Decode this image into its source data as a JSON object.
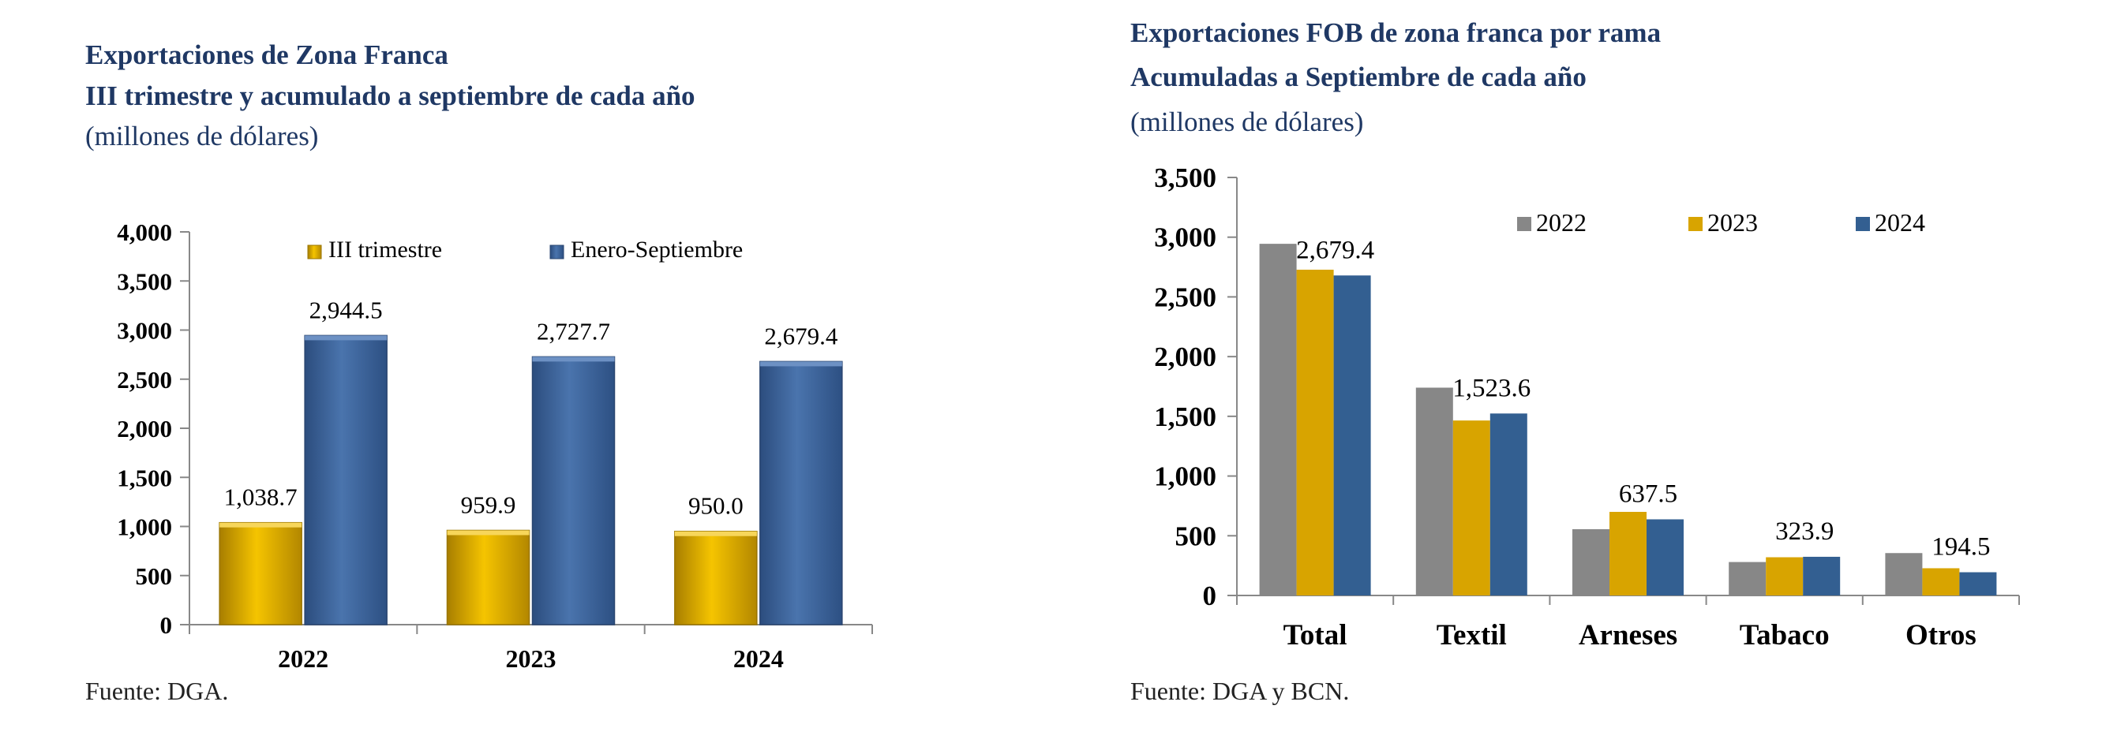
{
  "chart_data": [
    {
      "type": "bar",
      "title_line1": "Exportaciones de Zona Franca",
      "title_line2": "III trimestre y acumulado a septiembre de cada año",
      "subtitle": "(millones de dólares)",
      "categories": [
        "2022",
        "2023",
        "2024"
      ],
      "series": [
        {
          "name": "III trimestre",
          "values": [
            1038.7,
            959.9,
            950.0
          ],
          "labels": [
            "1,038.7",
            "959.9",
            "950.0"
          ],
          "color": "#e0ac00"
        },
        {
          "name": "Enero-Septiembre",
          "values": [
            2944.5,
            2727.7,
            2679.4
          ],
          "labels": [
            "2,944.5",
            "2,727.7",
            "2,679.4"
          ],
          "color": "#3d6399"
        }
      ],
      "ylim": [
        0,
        4000
      ],
      "yticks": [
        0,
        500,
        1000,
        1500,
        2000,
        2500,
        3000,
        3500,
        4000
      ],
      "ytick_labels": [
        "0",
        "500",
        "1,000",
        "1,500",
        "2,000",
        "2,500",
        "3,000",
        "3,500",
        "4,000"
      ],
      "legend": "top",
      "grid": false,
      "source": "Fuente: DGA."
    },
    {
      "type": "bar",
      "title_line1": "Exportaciones FOB de zona franca por rama",
      "title_line2": "Acumuladas a Septiembre de cada año",
      "subtitle": "(millones de dólares)",
      "categories": [
        "Total",
        "Textil",
        "Arneses",
        "Tabaco",
        "Otros"
      ],
      "series": [
        {
          "name": "2022",
          "values": [
            2944.5,
            1740,
            555,
            280,
            355
          ],
          "color": "#878787"
        },
        {
          "name": "2023",
          "values": [
            2727.7,
            1465,
            700,
            320,
            228
          ],
          "color": "#d8a400"
        },
        {
          "name": "2024",
          "values": [
            2679.4,
            1523.6,
            637.5,
            323.9,
            194.5
          ],
          "color": "#335f91"
        }
      ],
      "data_labels": [
        "2,679.4",
        "1,523.6",
        "637.5",
        "323.9",
        "194.5"
      ],
      "ylim": [
        0,
        3500
      ],
      "yticks": [
        0,
        500,
        1000,
        1500,
        2000,
        2500,
        3000,
        3500
      ],
      "ytick_labels": [
        "0",
        "500",
        "1,000",
        "1,500",
        "2,000",
        "2,500",
        "3,000",
        "3,500"
      ],
      "legend": "top-right",
      "grid": false,
      "source": "Fuente: DGA y BCN."
    }
  ]
}
